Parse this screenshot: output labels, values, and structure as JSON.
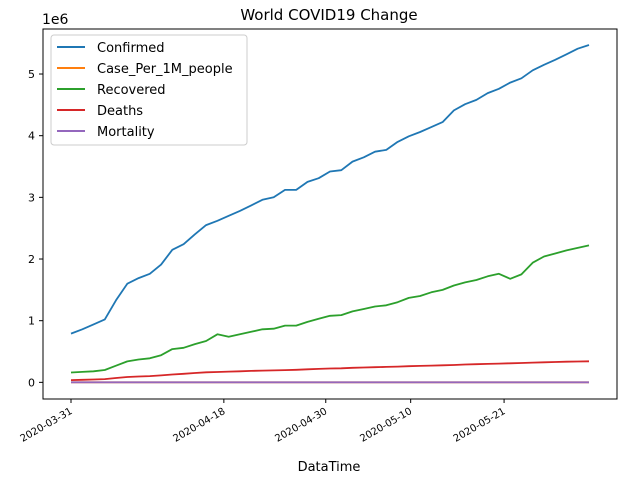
{
  "chart_data": {
    "type": "line",
    "title": "World COVID19 Change",
    "xlabel": "DataTime",
    "ylabel": "",
    "y_offset_text": "1e6",
    "ylim": [
      -0.27,
      5.73
    ],
    "yticks": [
      0,
      1,
      2,
      3,
      4,
      5
    ],
    "ytick_labels": [
      "0",
      "1",
      "2",
      "3",
      "4",
      "5"
    ],
    "x_start": "2020-03-31",
    "x_end": "2020-05-31",
    "xticks": [
      "2020-03-31",
      "2020-04-18",
      "2020-04-30",
      "2020-05-10",
      "2020-05-21"
    ],
    "legend_position": "top-left",
    "grid": false,
    "series": [
      {
        "name": "Confirmed",
        "color": "#1f77b4",
        "values": [
          0.79,
          0.86,
          0.94,
          1.02,
          1.33,
          1.6,
          1.69,
          1.76,
          1.91,
          2.15,
          2.24,
          2.4,
          2.55,
          2.62,
          2.7,
          2.78,
          2.87,
          2.96,
          3.0,
          3.12,
          3.12,
          3.25,
          3.31,
          3.42,
          3.44,
          3.58,
          3.65,
          3.74,
          3.77,
          3.9,
          3.99,
          4.06,
          4.14,
          4.22,
          4.41,
          4.51,
          4.58,
          4.69,
          4.76,
          4.86,
          4.93,
          5.06,
          5.15,
          5.23,
          5.32,
          5.41,
          5.47
        ]
      },
      {
        "name": "Case_Per_1M_people",
        "color": "#ff7f0e",
        "values": [
          0.0001,
          0.0001,
          0.0001,
          0.0001,
          0.0002,
          0.0002,
          0.0002,
          0.0002,
          0.0002,
          0.0003,
          0.0003,
          0.0003,
          0.0003,
          0.0003,
          0.0003,
          0.0004,
          0.0004,
          0.0004,
          0.0004,
          0.0004,
          0.0004,
          0.0004,
          0.0004,
          0.0004,
          0.0004,
          0.0005,
          0.0005,
          0.0005,
          0.0005,
          0.0005,
          0.0005,
          0.0005,
          0.0005,
          0.0005,
          0.0006,
          0.0006,
          0.0006,
          0.0006,
          0.0006,
          0.0006,
          0.0006,
          0.0006,
          0.0007,
          0.0007,
          0.0007,
          0.0007,
          0.0007
        ]
      },
      {
        "name": "Recovered",
        "color": "#2ca02c",
        "values": [
          0.16,
          0.17,
          0.18,
          0.2,
          0.27,
          0.34,
          0.37,
          0.39,
          0.44,
          0.54,
          0.56,
          0.62,
          0.67,
          0.78,
          0.74,
          0.78,
          0.82,
          0.86,
          0.87,
          0.92,
          0.92,
          0.98,
          1.03,
          1.08,
          1.09,
          1.15,
          1.19,
          1.23,
          1.25,
          1.3,
          1.37,
          1.4,
          1.46,
          1.5,
          1.57,
          1.62,
          1.66,
          1.72,
          1.76,
          1.68,
          1.75,
          1.94,
          2.04,
          2.09,
          2.14,
          2.18,
          2.22
        ]
      },
      {
        "name": "Deaths",
        "color": "#d62728",
        "values": [
          0.036,
          0.042,
          0.047,
          0.053,
          0.07,
          0.087,
          0.095,
          0.102,
          0.113,
          0.128,
          0.138,
          0.152,
          0.163,
          0.168,
          0.175,
          0.18,
          0.186,
          0.191,
          0.194,
          0.199,
          0.204,
          0.211,
          0.218,
          0.224,
          0.228,
          0.236,
          0.241,
          0.246,
          0.25,
          0.256,
          0.262,
          0.266,
          0.272,
          0.276,
          0.282,
          0.289,
          0.294,
          0.299,
          0.304,
          0.309,
          0.314,
          0.32,
          0.325,
          0.33,
          0.335,
          0.338,
          0.342
        ]
      },
      {
        "name": "Mortality",
        "color": "#9467bd",
        "values": [
          5e-05,
          5e-05,
          5e-05,
          5e-05,
          5e-05,
          5e-05,
          5e-05,
          6e-05,
          6e-05,
          6e-05,
          6e-05,
          6e-05,
          6e-05,
          7e-05,
          7e-05,
          7e-05,
          7e-05,
          7e-05,
          7e-05,
          7e-05,
          7e-05,
          7e-05,
          7e-05,
          7e-05,
          7e-05,
          7e-05,
          7e-05,
          7e-05,
          7e-05,
          7e-05,
          7e-05,
          7e-05,
          7e-05,
          7e-05,
          6e-05,
          6e-05,
          6e-05,
          6e-05,
          6e-05,
          6e-05,
          6e-05,
          6e-05,
          6e-05,
          6e-05,
          6e-05,
          6e-05,
          6e-05
        ]
      }
    ]
  }
}
